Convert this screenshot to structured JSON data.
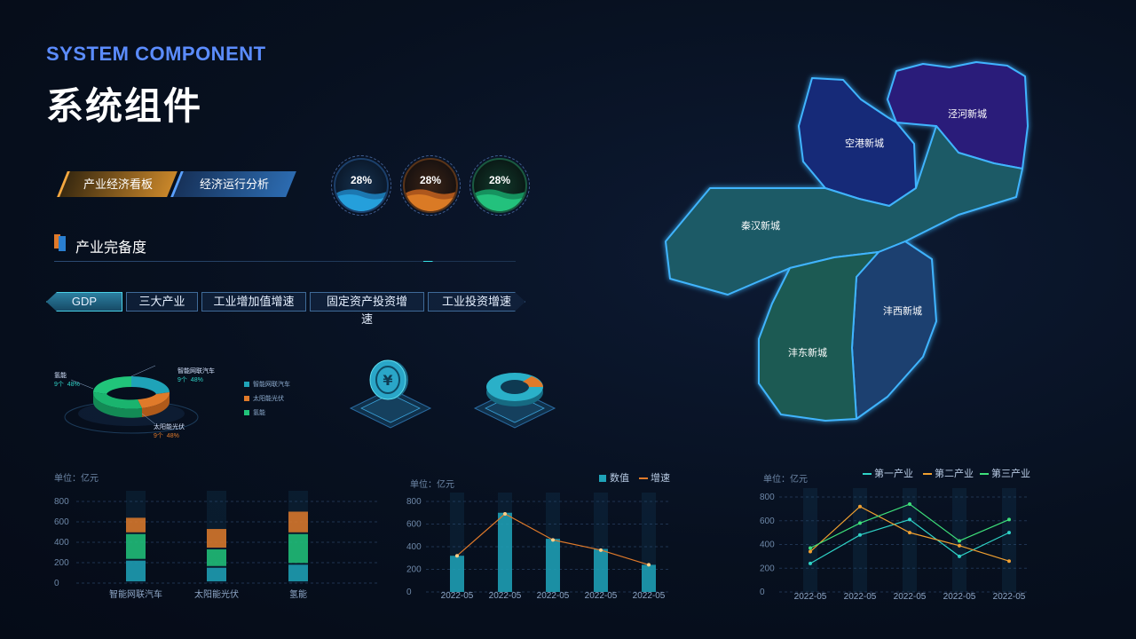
{
  "header": {
    "title_en": "SYSTEM COMPONENT",
    "title_cn": "系统组件"
  },
  "tags": [
    "产业经济看板",
    "经济运行分析"
  ],
  "gauges": [
    {
      "value": "28%",
      "color": "#2a9bd8"
    },
    {
      "value": "28%",
      "color": "#e07a2a"
    },
    {
      "value": "28%",
      "color": "#22c48a"
    }
  ],
  "section": {
    "title": "产业完备度"
  },
  "tabs": [
    "GDP",
    "三大产业",
    "工业增加值增速",
    "固定资产投资增速",
    "工业投资增速"
  ],
  "donut": {
    "labels": [
      {
        "name": "智能网联汽车",
        "count": "9个",
        "pct": "48%"
      },
      {
        "name": "氢能",
        "count": "9个",
        "pct": "48%"
      },
      {
        "name": "太阳能光伏",
        "count": "9个",
        "pct": "48%"
      }
    ],
    "legend": [
      "智能网联汽车",
      "太阳能光伏",
      "氢能"
    ],
    "colors": [
      "#1fa3b8",
      "#e07a2a",
      "#21c47a"
    ]
  },
  "map": {
    "regions": [
      "泾河新城",
      "空港新城",
      "秦汉新城",
      "沣西新城",
      "沣东新城"
    ]
  },
  "chart_data": [
    {
      "type": "bar",
      "unit": "单位：亿元",
      "categories": [
        "智能网联汽车",
        "太阳能光伏",
        "氢能"
      ],
      "series": [
        {
          "values": [
            220,
            150,
            180
          ],
          "color": "#1fa3b8"
        },
        {
          "values": [
            260,
            180,
            300
          ],
          "color": "#21c47a"
        },
        {
          "values": [
            160,
            200,
            220
          ],
          "color": "#e07a2a"
        }
      ],
      "yticks": [
        0,
        200,
        400,
        600,
        800
      ],
      "ylim": [
        0,
        800
      ]
    },
    {
      "type": "bar+line",
      "unit": "单位：亿元",
      "legend": [
        "数值",
        "增速"
      ],
      "categories": [
        "2022-05",
        "2022-05",
        "2022-05",
        "2022-05",
        "2022-05"
      ],
      "bars": [
        320,
        700,
        470,
        380,
        240
      ],
      "line": [
        320,
        690,
        460,
        370,
        240
      ],
      "yticks": [
        0,
        200,
        400,
        600,
        800
      ],
      "ylim": [
        0,
        800
      ],
      "colors": {
        "bar": "#1fa3b8",
        "line": "#e07a2a"
      }
    },
    {
      "type": "line",
      "unit": "单位：亿元",
      "categories": [
        "2022-05",
        "2022-05",
        "2022-05",
        "2022-05",
        "2022-05"
      ],
      "series": [
        {
          "name": "第一产业",
          "values": [
            240,
            480,
            610,
            300,
            500
          ],
          "color": "#2fd3c7"
        },
        {
          "name": "第二产业",
          "values": [
            340,
            720,
            500,
            390,
            260
          ],
          "color": "#f0a030"
        },
        {
          "name": "第三产业",
          "values": [
            370,
            580,
            740,
            430,
            610
          ],
          "color": "#3ee07a"
        }
      ],
      "yticks": [
        0,
        200,
        400,
        600,
        800
      ],
      "ylim": [
        0,
        800
      ]
    }
  ]
}
